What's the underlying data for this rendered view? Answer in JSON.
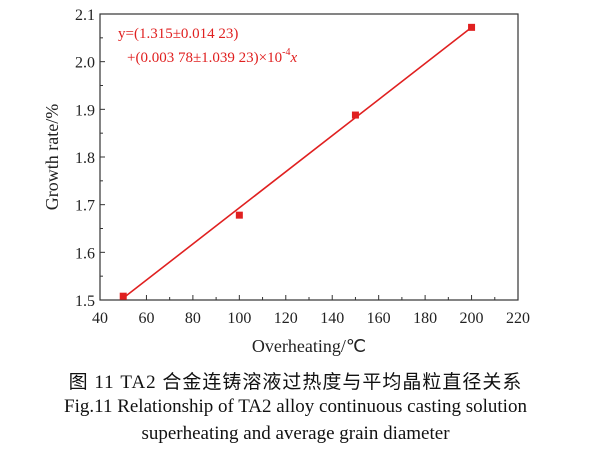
{
  "chart_data": {
    "type": "scatter",
    "xlabel": "Overheating/℃",
    "ylabel": "Growth rate/%",
    "xlim": [
      40,
      220
    ],
    "ylim": [
      1.5,
      2.1
    ],
    "xticks": [
      40,
      60,
      80,
      100,
      120,
      140,
      160,
      180,
      200,
      220
    ],
    "yticks": [
      1.5,
      1.6,
      1.7,
      1.8,
      1.9,
      2.0,
      2.1
    ],
    "x_tick_labels": [
      "40",
      "60",
      "80",
      "100",
      "120",
      "140",
      "160",
      "180",
      "200",
      "220"
    ],
    "y_tick_labels": [
      "1.5",
      "1.6",
      "1.7",
      "1.8",
      "1.9",
      "2.0",
      "2.1"
    ],
    "points": [
      {
        "x": 50,
        "y": 1.508
      },
      {
        "x": 100,
        "y": 1.678
      },
      {
        "x": 150,
        "y": 1.888
      },
      {
        "x": 200,
        "y": 2.072
      }
    ],
    "fit_line": {
      "x": [
        50,
        200
      ],
      "y": [
        1.504,
        2.072
      ]
    },
    "equation_line1": "y=(1.315±0.014 23)",
    "equation_line2": "+(0.003 78±1.039 23)×10",
    "equation_exp": "-4",
    "equation_var": "x",
    "grid": false,
    "marker_color": "#e02020",
    "line_color": "#e02020"
  },
  "caption": {
    "chinese": "图 11  TA2 合金连铸溶液过热度与平均晶粒直径关系",
    "english_line1": "Fig.11  Relationship of TA2 alloy continuous casting solution",
    "english_line2": "superheating and average grain diameter"
  }
}
